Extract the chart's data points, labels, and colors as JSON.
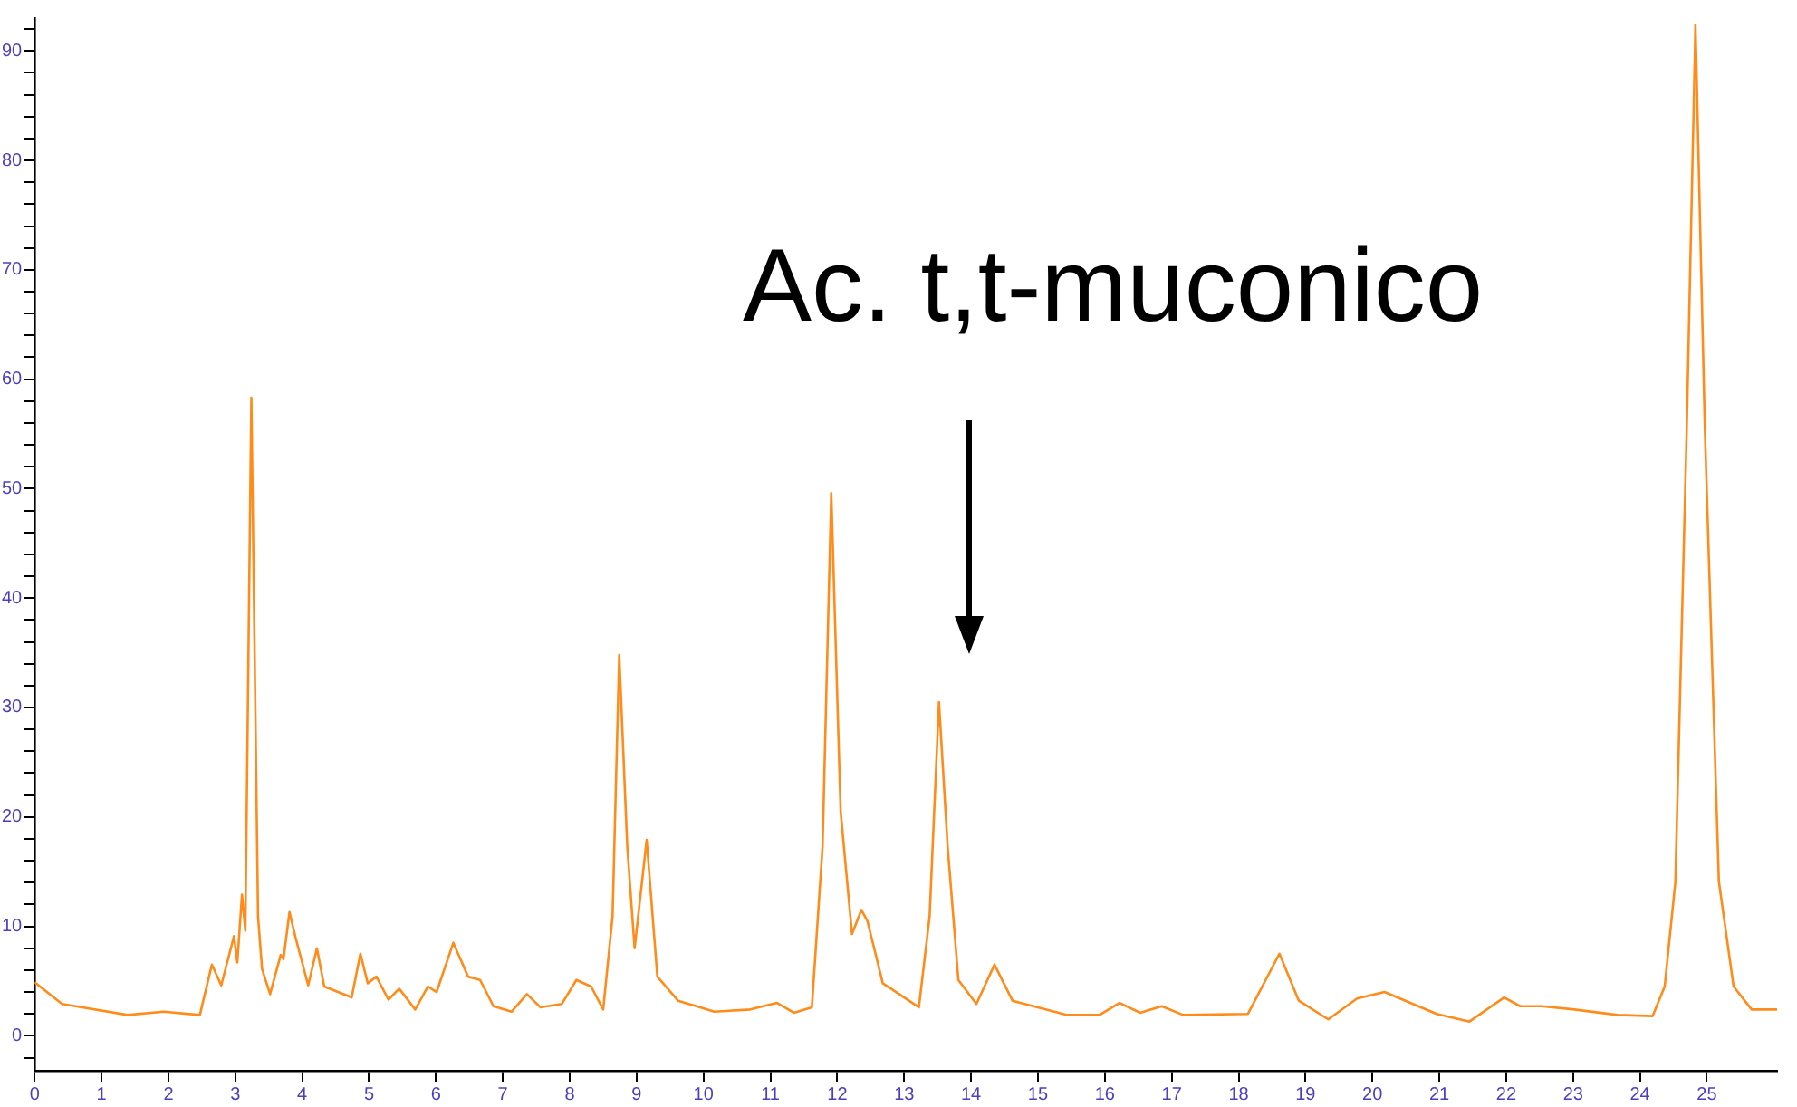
{
  "chart_data": {
    "type": "line",
    "annotations": [
      "Ac. t,t-muconico"
    ],
    "x": [
      0,
      0.41,
      1.39,
      1.93,
      2.47,
      2.65,
      2.79,
      2.98,
      3.03,
      3.1,
      3.15,
      3.24,
      3.34,
      3.4,
      3.52,
      3.68,
      3.72,
      3.81,
      3.9,
      4.09,
      4.22,
      4.33,
      4.74,
      4.87,
      4.98,
      5.11,
      5.29,
      5.45,
      5.69,
      5.88,
      6.01,
      6.26,
      6.48,
      6.66,
      6.86,
      7.13,
      7.36,
      7.56,
      7.88,
      8.1,
      8.32,
      8.5,
      8.64,
      8.74,
      8.86,
      8.97,
      9.15,
      9.31,
      9.62,
      10.16,
      10.7,
      11.1,
      11.35,
      11.62,
      11.78,
      11.91,
      12.05,
      12.22,
      12.36,
      12.45,
      12.68,
      13.22,
      13.38,
      13.52,
      13.65,
      13.81,
      14.08,
      14.35,
      14.62,
      15.44,
      15.92,
      16.22,
      16.53,
      16.85,
      17.17,
      18.14,
      18.61,
      18.9,
      19.34,
      19.77,
      20.18,
      20.96,
      21.45,
      21.97,
      22.21,
      22.53,
      23.02,
      23.67,
      24.19,
      24.37,
      24.53,
      24.7,
      24.83,
      24.97,
      25.18,
      25.4,
      25.67,
      26.05
    ],
    "series": [
      {
        "color": "#ff8c1a",
        "values": [
          4.9,
          2.9,
          1.9,
          2.2,
          1.9,
          6.5,
          4.6,
          9.1,
          6.7,
          12.9,
          9.6,
          58.3,
          10.9,
          6.1,
          3.8,
          7.4,
          7,
          11.3,
          9,
          4.6,
          8,
          4.5,
          3.5,
          7.5,
          4.8,
          5.4,
          3.3,
          4.3,
          2.4,
          4.5,
          4,
          8.5,
          5.4,
          5.1,
          2.7,
          2.2,
          3.8,
          2.6,
          2.9,
          5.1,
          4.5,
          2.4,
          10.9,
          34.8,
          17.3,
          8,
          17.9,
          5.4,
          3.2,
          2.2,
          2.4,
          3,
          2.1,
          2.6,
          17.3,
          49.6,
          20.5,
          9.3,
          11.5,
          10.5,
          4.8,
          2.6,
          10.9,
          30.5,
          17.3,
          5.1,
          2.9,
          6.5,
          3.2,
          1.9,
          1.9,
          3,
          2.1,
          2.7,
          1.9,
          2,
          7.5,
          3.2,
          1.5,
          3.4,
          4,
          2,
          1.3,
          3.5,
          2.7,
          2.7,
          2.4,
          1.9,
          1.8,
          4.5,
          14.1,
          55.6,
          92.4,
          55.6,
          14.1,
          4.5,
          2.4,
          2.4
        ]
      }
    ],
    "xlim": [
      0,
      26.05
    ],
    "ylim": [
      -3.2,
      93
    ],
    "xticks": [
      0,
      1,
      2,
      3,
      4,
      5,
      6,
      7,
      8,
      9,
      10,
      11,
      12,
      13,
      14,
      15,
      16,
      17,
      18,
      19,
      20,
      21,
      22,
      23,
      24,
      25
    ],
    "yticks": [
      {
        "value": -2,
        "label": null
      },
      0,
      {
        "value": 2,
        "label": null
      },
      {
        "value": 4,
        "label": null
      },
      {
        "value": 6,
        "label": null
      },
      {
        "value": 8,
        "label": null
      },
      10,
      {
        "value": 12,
        "label": null
      },
      {
        "value": 14,
        "label": null
      },
      {
        "value": 16,
        "label": null
      },
      {
        "value": 18,
        "label": null
      },
      20,
      {
        "value": 22,
        "label": null
      },
      {
        "value": 24,
        "label": null
      },
      {
        "value": 26,
        "label": null
      },
      {
        "value": 28,
        "label": null
      },
      30,
      {
        "value": 32,
        "label": null
      },
      {
        "value": 34,
        "label": null
      },
      {
        "value": 36,
        "label": null
      },
      {
        "value": 38,
        "label": null
      },
      40,
      {
        "value": 42,
        "label": null
      },
      {
        "value": 44,
        "label": null
      },
      {
        "value": 46,
        "label": null
      },
      {
        "value": 48,
        "label": null
      },
      50,
      {
        "value": 52,
        "label": null
      },
      {
        "value": 54,
        "label": null
      },
      {
        "value": 56,
        "label": null
      },
      {
        "value": 58,
        "label": null
      },
      60,
      {
        "value": 62,
        "label": null
      },
      {
        "value": 64,
        "label": null
      },
      {
        "value": 66,
        "label": null
      },
      {
        "value": 68,
        "label": null
      },
      70,
      {
        "value": 72,
        "label": null
      },
      {
        "value": 74,
        "label": null
      },
      {
        "value": 76,
        "label": null
      },
      {
        "value": 78,
        "label": null
      },
      80,
      {
        "value": 82,
        "label": null
      },
      {
        "value": 84,
        "label": null
      },
      {
        "value": 86,
        "label": null
      },
      {
        "value": 88,
        "label": null
      },
      90,
      {
        "value": 92,
        "label": null
      }
    ],
    "grid": false,
    "legend": false,
    "marker": "none",
    "line_style": "solid"
  }
}
